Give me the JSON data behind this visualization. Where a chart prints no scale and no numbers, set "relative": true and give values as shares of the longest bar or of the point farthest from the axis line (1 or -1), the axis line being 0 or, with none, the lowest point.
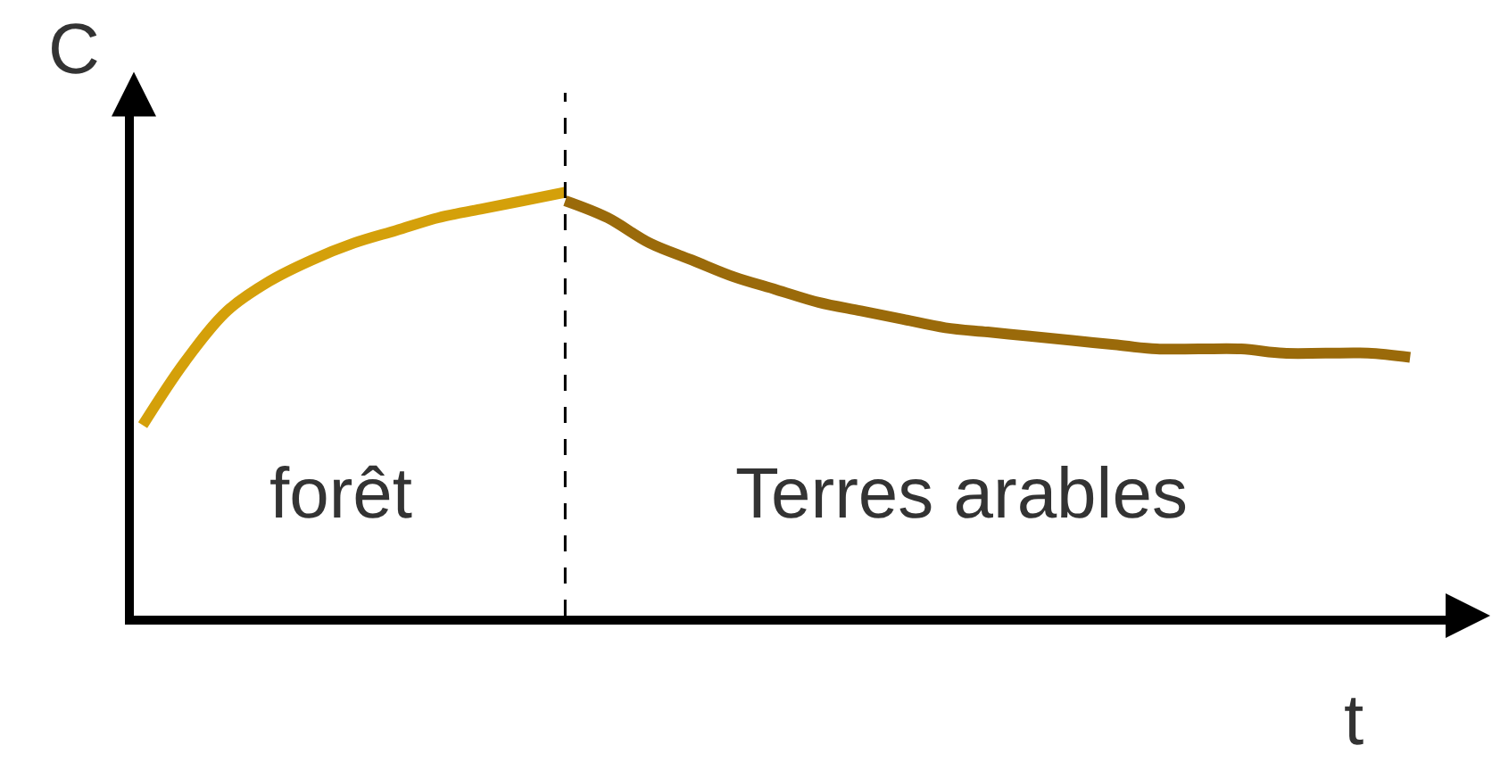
{
  "chart_data": {
    "type": "line",
    "relative": true,
    "xlabel": "t",
    "ylabel": "C",
    "categories": [
      null,
      null,
      null,
      null,
      null,
      null,
      null,
      null,
      null,
      null,
      null,
      null,
      null,
      null,
      null,
      null,
      null,
      null,
      null,
      null,
      null,
      null,
      null,
      null,
      null,
      null,
      null,
      null,
      null,
      null,
      null
    ],
    "series": [
      {
        "color": "#d4a00a",
        "values": [
          0.45,
          0.6,
          0.72,
          0.79,
          0.84,
          0.88,
          0.91,
          0.94,
          0.96,
          0.98,
          1.0,
          null,
          null,
          null,
          null,
          null,
          null,
          null,
          null,
          null,
          null,
          null,
          null,
          null,
          null,
          null,
          null,
          null,
          null,
          null,
          null
        ]
      },
      {
        "color": "#9a6a0a",
        "values": [
          null,
          null,
          null,
          null,
          null,
          null,
          null,
          null,
          null,
          null,
          0.98,
          0.94,
          0.88,
          0.84,
          0.8,
          0.77,
          0.74,
          0.72,
          0.7,
          0.68,
          0.67,
          0.66,
          0.65,
          0.64,
          0.63,
          0.63,
          0.63,
          0.62,
          0.62,
          0.62,
          0.61
        ]
      }
    ],
    "annotations": [
      "forêt",
      "Terres arables"
    ],
    "marker": "none",
    "line_style": "solid"
  }
}
